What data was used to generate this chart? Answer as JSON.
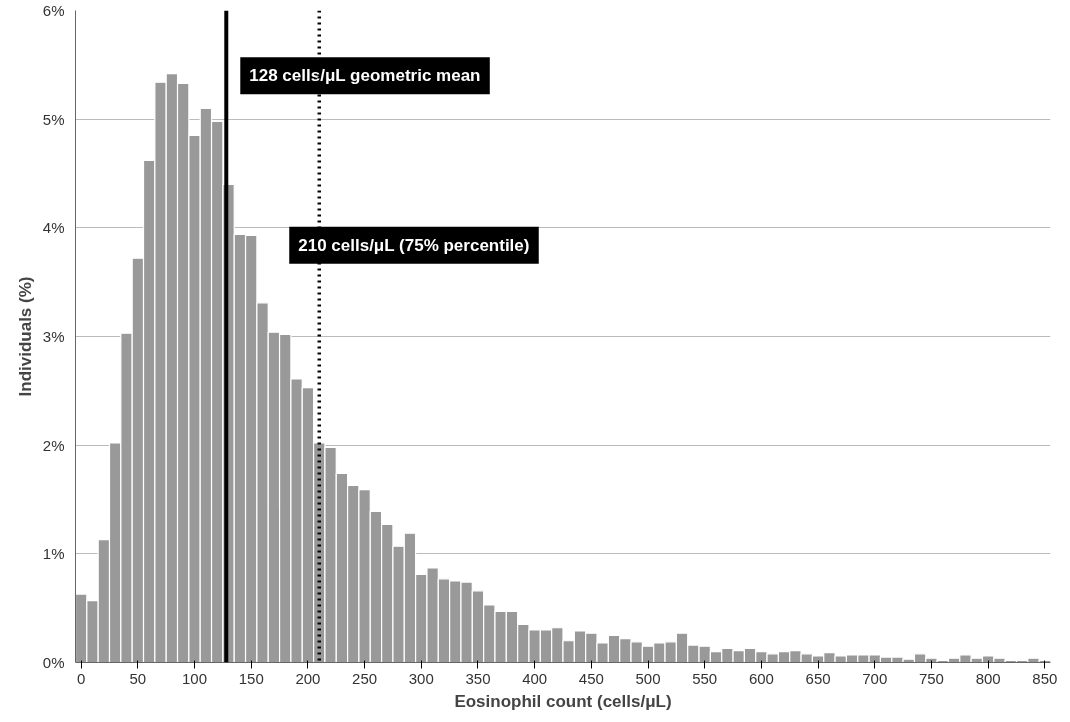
{
  "chart_data": {
    "type": "histogram",
    "xlabel": "Eosinophil count (cells/μL)",
    "ylabel": "Individuals (%)",
    "bins": [
      -5,
      5,
      15,
      25,
      35,
      45,
      55,
      65,
      75,
      85,
      95,
      105,
      115,
      125,
      135,
      145,
      155,
      165,
      175,
      185,
      195,
      205,
      215,
      225,
      235,
      245,
      255,
      265,
      275,
      285,
      295,
      305,
      315,
      325,
      335,
      345,
      355,
      365,
      375,
      385,
      395,
      405,
      415,
      425,
      435,
      445,
      455,
      465,
      475,
      485,
      495,
      505,
      515,
      525,
      535,
      545,
      555,
      565,
      575,
      585,
      595,
      605,
      615,
      625,
      635,
      645,
      655,
      665,
      675,
      685,
      695,
      705,
      715,
      725,
      735,
      745,
      755,
      765,
      775,
      785,
      795,
      805,
      815,
      825,
      835,
      845,
      855
    ],
    "values": [
      0.63,
      0.57,
      1.13,
      2.02,
      3.03,
      3.72,
      4.62,
      5.34,
      5.42,
      5.33,
      4.85,
      5.1,
      4.98,
      4.4,
      3.94,
      3.93,
      3.31,
      3.04,
      3.02,
      2.61,
      2.53,
      2.02,
      1.98,
      1.74,
      1.63,
      1.59,
      1.39,
      1.27,
      1.07,
      1.19,
      0.81,
      0.87,
      0.77,
      0.75,
      0.74,
      0.66,
      0.53,
      0.47,
      0.47,
      0.35,
      0.3,
      0.3,
      0.32,
      0.2,
      0.29,
      0.27,
      0.18,
      0.25,
      0.22,
      0.19,
      0.15,
      0.18,
      0.19,
      0.27,
      0.16,
      0.15,
      0.1,
      0.13,
      0.11,
      0.13,
      0.1,
      0.08,
      0.1,
      0.11,
      0.08,
      0.06,
      0.09,
      0.06,
      0.07,
      0.07,
      0.07,
      0.05,
      0.05,
      0.03,
      0.08,
      0.04,
      0.02,
      0.04,
      0.07,
      0.04,
      0.06,
      0.04,
      0.02,
      0.02,
      0.04,
      0.02
    ],
    "color": "#999999",
    "xlim": [
      -5,
      855
    ],
    "xticks": [
      0,
      50,
      100,
      150,
      200,
      250,
      300,
      350,
      400,
      450,
      500,
      550,
      600,
      650,
      700,
      750,
      800,
      850
    ],
    "ylim": [
      0,
      6
    ],
    "yticks": [
      {
        "value": 0,
        "label": "0%"
      },
      {
        "value": 1,
        "label": "1%"
      },
      {
        "value": 2,
        "label": "2%"
      },
      {
        "value": 3,
        "label": "3%"
      },
      {
        "value": 4,
        "label": "4%"
      },
      {
        "value": 5,
        "label": "5%"
      },
      {
        "value": 6,
        "label": "6%"
      }
    ],
    "grid": "y",
    "ref_lines": [
      {
        "axis": "x",
        "value": 128,
        "label": "128 cells/μL geometric mean",
        "color": "#000000",
        "line_style": "solid"
      },
      {
        "axis": "x",
        "value": 210,
        "label": "210 cells/μL (75% percentile)",
        "color": "#000000",
        "line_style": "dotted"
      }
    ]
  }
}
